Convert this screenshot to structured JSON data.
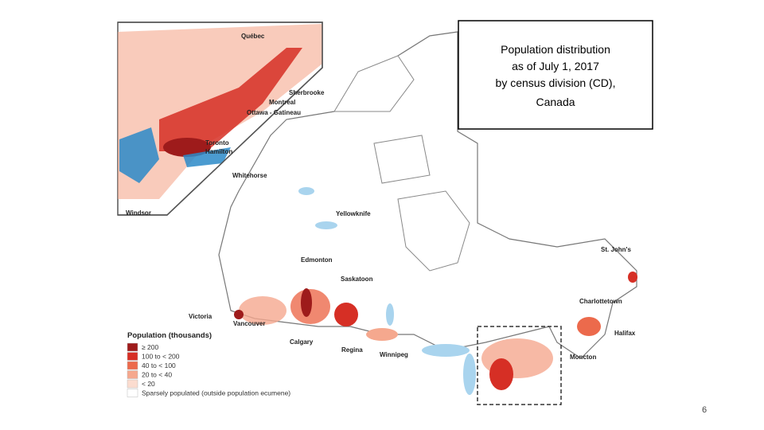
{
  "title_lines": [
    "Population distribution",
    "as of July 1, 2017",
    "by census division (CD),",
    "Canada"
  ],
  "cities": [
    "Québec",
    "Sherbrooke",
    "Montreal",
    "Ottawa - Gatineau",
    "Toronto",
    "Hamilton",
    "Windsor",
    "Whitehorse",
    "Yellowknife",
    "Edmonton",
    "Saskatoon",
    "Victoria",
    "Vancouver",
    "Calgary",
    "Regina",
    "Winnipeg",
    "St. John's",
    "Charlottetown",
    "Halifax",
    "Moncton"
  ],
  "legend": {
    "title": "Population (thousands)",
    "items": [
      {
        "label": "≥ 200",
        "color": "#9e1b1b"
      },
      {
        "label": "100 to < 200",
        "color": "#d62f25"
      },
      {
        "label": "40 to < 100",
        "color": "#ec6a4c"
      },
      {
        "label": "20 to < 40",
        "color": "#f5a88e"
      },
      {
        "label": "< 20",
        "color": "#fbdccf"
      },
      {
        "label": "Sparsely populated (outside population ecumene)",
        "color": "#ffffff"
      }
    ]
  },
  "page_number": "6"
}
